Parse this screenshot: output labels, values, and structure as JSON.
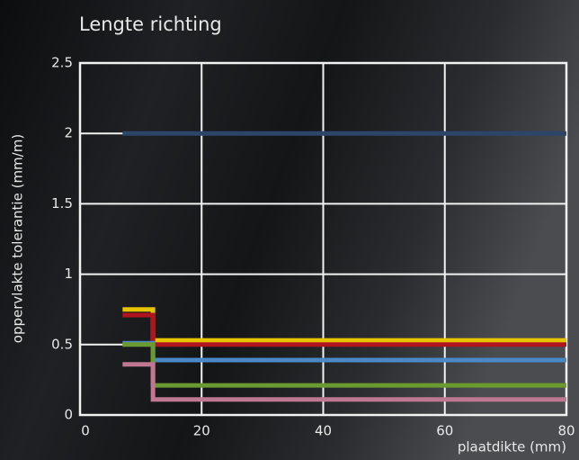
{
  "chart_data": {
    "type": "line",
    "title": "Lengte richting",
    "x_label": "plaatdikte (mm)",
    "y_label": "oppervlakte tolerantie (mm/m)",
    "x": [
      7,
      12,
      12,
      80
    ],
    "series": [
      {
        "color": "#2c466a",
        "values": [
          2,
          2,
          2,
          2
        ]
      },
      {
        "color": "#e6c400",
        "values": [
          0.75,
          0.75,
          0.53,
          0.53
        ]
      },
      {
        "color": "#b0141e",
        "values": [
          0.71,
          0.71,
          0.5,
          0.5
        ]
      },
      {
        "color": "#4a88c6",
        "values": [
          0.51,
          0.51,
          0.39,
          0.39
        ]
      },
      {
        "color": "#6b9a30",
        "values": [
          0.5,
          0.5,
          0.21,
          0.21
        ]
      },
      {
        "color": "#c07892",
        "values": [
          0.36,
          0.36,
          0.11,
          0.11
        ]
      }
    ],
    "xlim": [
      0,
      80
    ],
    "xticks": [
      0,
      20,
      40,
      60,
      80
    ],
    "ylim": [
      0,
      2.5
    ],
    "yticks": [
      0,
      0.5,
      1,
      1.5,
      2,
      2.5
    ],
    "grid": true
  }
}
